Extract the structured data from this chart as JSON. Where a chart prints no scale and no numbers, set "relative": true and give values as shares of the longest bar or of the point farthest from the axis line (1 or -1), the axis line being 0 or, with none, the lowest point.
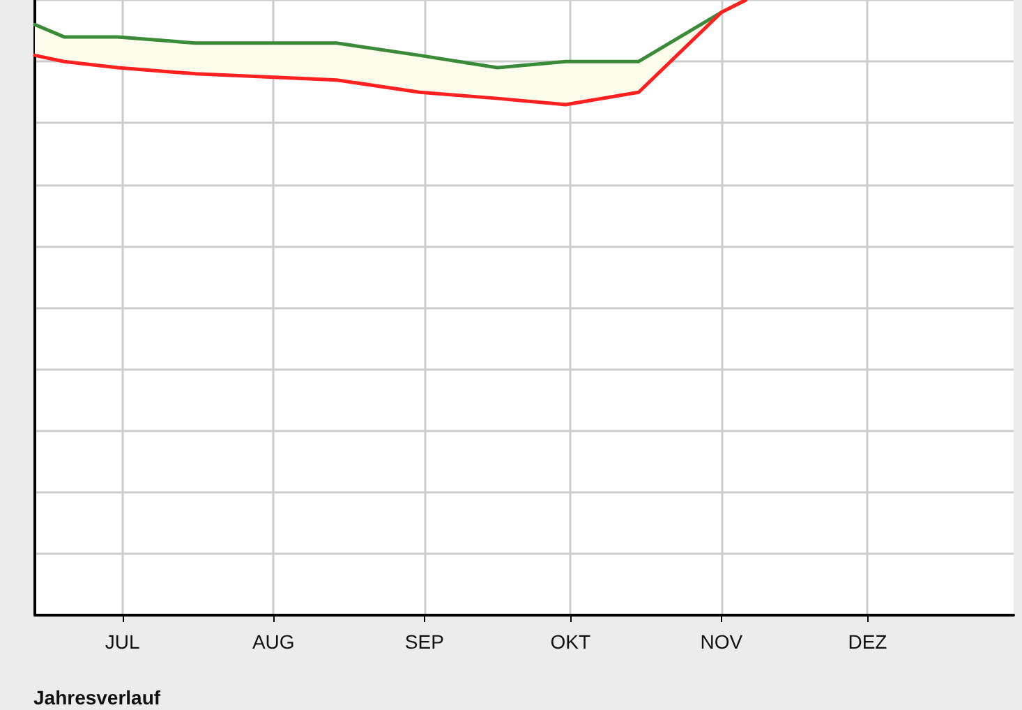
{
  "chart_data": {
    "type": "line",
    "relative": true,
    "xlabel": "Jahresverlauf",
    "x": [
      "--06-13",
      "--06-19",
      "--06-30",
      "--07-16",
      "--08-14",
      "--08-31",
      "--09-16",
      "--09-30",
      "--10-15",
      "--11-01",
      "--11-06"
    ],
    "xlim": [
      "--06-13",
      "--12-31"
    ],
    "xticks": [
      {
        "value": "--07-01",
        "label": "JUL"
      },
      {
        "value": "--08-01",
        "label": "AUG"
      },
      {
        "value": "--09-01",
        "label": "SEP"
      },
      {
        "value": "--10-01",
        "label": "OKT"
      },
      {
        "value": "--11-01",
        "label": "NOV"
      },
      {
        "value": "--12-01",
        "label": "DEZ"
      }
    ],
    "series": [
      {
        "color": "#3a8a3a",
        "values": [
          0.96,
          0.94,
          0.94,
          0.93,
          0.93,
          0.91,
          0.89,
          0.9,
          0.9,
          0.98,
          1
        ]
      },
      {
        "color": "#ff2020",
        "values": [
          0.91,
          0.9,
          0.89,
          0.88,
          0.87,
          0.85,
          0.84,
          0.83,
          0.85,
          0.98,
          1
        ]
      }
    ],
    "grid": true,
    "marker": "none",
    "line_style": "solid"
  }
}
